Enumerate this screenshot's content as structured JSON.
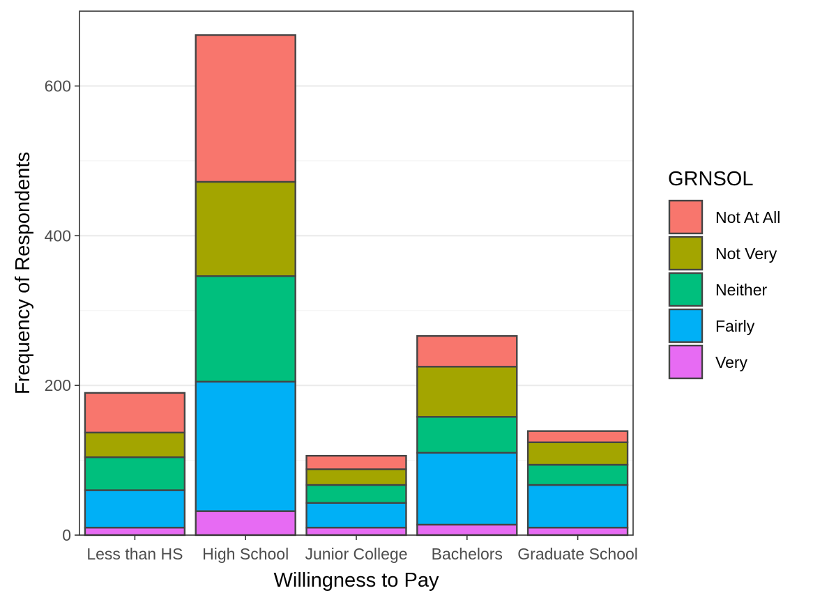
{
  "chart_data": {
    "type": "bar",
    "stacked": true,
    "title": "",
    "xlabel": "Willingness to Pay",
    "ylabel": "Frequency of Respondents",
    "categories": [
      "Less than HS",
      "High School",
      "Junior College",
      "Bachelors",
      "Graduate School"
    ],
    "ylim": [
      0,
      700
    ],
    "yticks": [
      0,
      200,
      400,
      600
    ],
    "grid": true,
    "legend": {
      "title": "GRNSOL",
      "position": "right"
    },
    "series": [
      {
        "name": "Very",
        "color": "#E76BF3",
        "values": [
          10,
          32,
          10,
          14,
          10
        ]
      },
      {
        "name": "Fairly",
        "color": "#00B0F6",
        "values": [
          50,
          173,
          33,
          96,
          57
        ]
      },
      {
        "name": "Neither",
        "color": "#00BF7D",
        "values": [
          44,
          141,
          24,
          48,
          27
        ]
      },
      {
        "name": "Not Very",
        "color": "#A3A500",
        "values": [
          33,
          126,
          21,
          67,
          30
        ]
      },
      {
        "name": "Not At All",
        "color": "#F8766D",
        "values": [
          53,
          196,
          18,
          41,
          15
        ]
      }
    ],
    "legend_order": [
      "Not At All",
      "Not Very",
      "Neither",
      "Fairly",
      "Very"
    ]
  }
}
